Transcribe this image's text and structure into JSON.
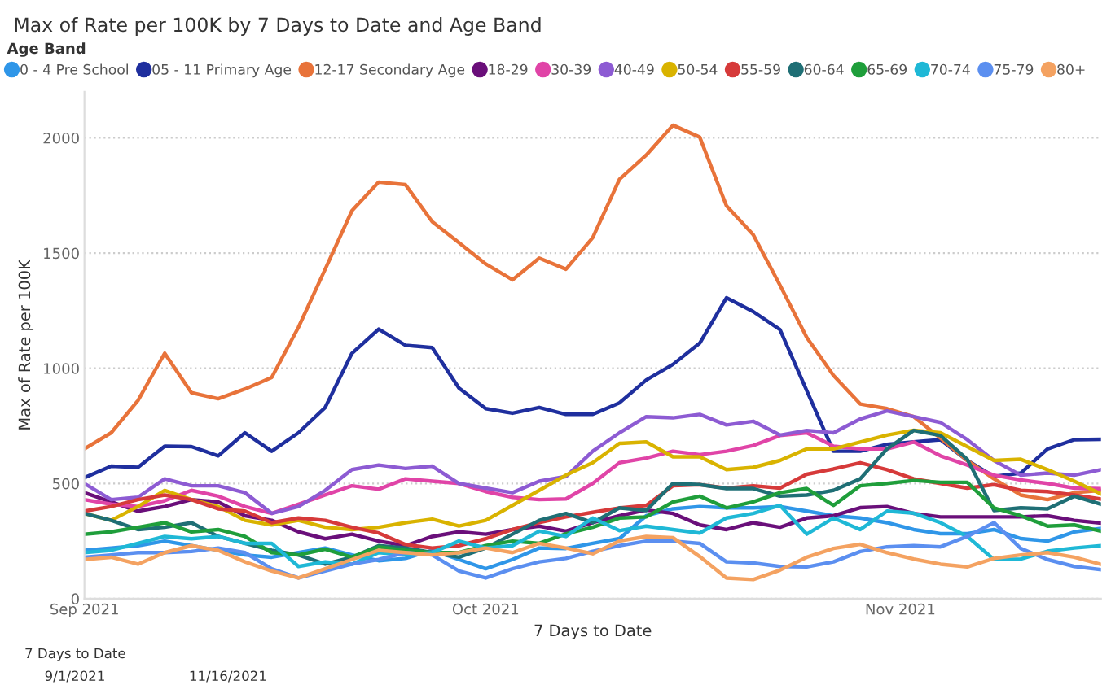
{
  "chart_data": {
    "type": "line",
    "title": "Max of Rate per 100K by 7 Days to Date and Age Band",
    "xlabel": "7 Days to Date",
    "ylabel": "Max of Rate per 100K",
    "legend_title": "Age Band",
    "legend": "top left",
    "grid": "y",
    "marker": "none",
    "line_style": "solid",
    "annotations": [
      "7 Days to Date",
      "9/1/2021",
      "11/16/2021"
    ],
    "xlim": [
      "2021-09-01",
      "2021-11-16"
    ],
    "xticks": [
      {
        "value": "2021-09-01",
        "label": "Sep 2021"
      },
      {
        "value": "2021-10-01",
        "label": "Oct 2021"
      },
      {
        "value": "2021-11-01",
        "label": "Nov 2021"
      }
    ],
    "ylim": [
      0,
      2200
    ],
    "yticks": [
      0,
      500,
      1000,
      1500,
      2000
    ],
    "x": [
      "2021-09-01",
      "2021-09-03",
      "2021-09-05",
      "2021-09-07",
      "2021-09-09",
      "2021-09-11",
      "2021-09-13",
      "2021-09-15",
      "2021-09-17",
      "2021-09-19",
      "2021-09-21",
      "2021-09-23",
      "2021-09-25",
      "2021-09-27",
      "2021-09-29",
      "2021-10-01",
      "2021-10-03",
      "2021-10-05",
      "2021-10-07",
      "2021-10-09",
      "2021-10-11",
      "2021-10-13",
      "2021-10-15",
      "2021-10-17",
      "2021-10-19",
      "2021-10-21",
      "2021-10-23",
      "2021-10-25",
      "2021-10-27",
      "2021-10-29",
      "2021-10-31",
      "2021-11-02",
      "2021-11-04",
      "2021-11-06",
      "2021-11-08",
      "2021-11-10",
      "2021-11-12",
      "2021-11-14",
      "2021-11-16"
    ],
    "series": [
      {
        "name": "0 - 4 Pre School",
        "color": "#2f96e8",
        "values": [
          210,
          220,
          230,
          250,
          230,
          210,
          190,
          180,
          200,
          220,
          190,
          165,
          175,
          210,
          170,
          130,
          170,
          220,
          218,
          240,
          261,
          360,
          390,
          400,
          394,
          394,
          400,
          380,
          360,
          350,
          330,
          300,
          282,
          282,
          300,
          261,
          250,
          290,
          305
        ]
      },
      {
        "name": "05 - 11 Primary Age",
        "color": "#1f2f9e",
        "values": [
          525,
          575,
          570,
          662,
          660,
          620,
          720,
          640,
          720,
          830,
          1065,
          1170,
          1100,
          1090,
          914,
          825,
          805,
          830,
          800,
          800,
          850,
          949,
          1017,
          1109,
          1306,
          1246,
          1168,
          903,
          640,
          640,
          670,
          680,
          690,
          600,
          530,
          545,
          650,
          690,
          692
        ]
      },
      {
        "name": "12-17 Secondary Age",
        "color": "#e8733a",
        "values": [
          650,
          720,
          860,
          1065,
          894,
          868,
          910,
          960,
          1178,
          1430,
          1684,
          1808,
          1797,
          1636,
          1545,
          1453,
          1384,
          1478,
          1430,
          1567,
          1820,
          1925,
          2055,
          2003,
          1705,
          1580,
          1361,
          1134,
          969,
          845,
          825,
          790,
          697,
          600,
          520,
          450,
          430,
          460,
          470
        ]
      },
      {
        "name": "18-29",
        "color": "#6a0f7a",
        "values": [
          460,
          420,
          380,
          400,
          430,
          420,
          360,
          340,
          290,
          260,
          280,
          250,
          230,
          270,
          290,
          280,
          300,
          315,
          293,
          330,
          360,
          385,
          370,
          320,
          300,
          330,
          310,
          350,
          360,
          395,
          400,
          370,
          355,
          355,
          355,
          355,
          360,
          340,
          328
        ]
      },
      {
        "name": "30-39",
        "color": "#e044a7",
        "values": [
          430,
          410,
          400,
          425,
          470,
          445,
          400,
          370,
          410,
          450,
          490,
          475,
          520,
          510,
          500,
          465,
          440,
          430,
          433,
          500,
          590,
          610,
          640,
          625,
          640,
          665,
          708,
          720,
          662,
          650,
          650,
          680,
          620,
          580,
          536,
          515,
          500,
          480,
          477
        ]
      },
      {
        "name": "40-49",
        "color": "#8d5bd3",
        "values": [
          500,
          430,
          440,
          520,
          490,
          490,
          460,
          370,
          400,
          470,
          560,
          580,
          565,
          575,
          500,
          480,
          460,
          510,
          530,
          640,
          720,
          790,
          785,
          800,
          754,
          770,
          710,
          730,
          720,
          780,
          815,
          790,
          765,
          690,
          600,
          536,
          545,
          536,
          560
        ]
      },
      {
        "name": "50-54",
        "color": "#d9b300",
        "values": [
          370,
          340,
          400,
          470,
          430,
          400,
          340,
          320,
          340,
          310,
          300,
          310,
          330,
          345,
          315,
          340,
          405,
          470,
          536,
          590,
          674,
          680,
          616,
          616,
          560,
          570,
          600,
          650,
          650,
          680,
          710,
          731,
          720,
          660,
          600,
          605,
          560,
          510,
          455
        ]
      },
      {
        "name": "55-59",
        "color": "#d63a3a",
        "values": [
          380,
          400,
          430,
          450,
          430,
          390,
          380,
          330,
          350,
          340,
          310,
          285,
          235,
          220,
          230,
          260,
          300,
          330,
          355,
          375,
          394,
          405,
          490,
          495,
          480,
          490,
          480,
          540,
          563,
          590,
          560,
          520,
          500,
          480,
          495,
          470,
          465,
          450,
          432
        ]
      },
      {
        "name": "60-64",
        "color": "#1f6f75",
        "values": [
          370,
          340,
          300,
          310,
          330,
          270,
          240,
          210,
          190,
          150,
          180,
          230,
          220,
          200,
          180,
          220,
          280,
          340,
          370,
          330,
          394,
          383,
          500,
          495,
          478,
          478,
          445,
          450,
          470,
          520,
          650,
          730,
          708,
          605,
          383,
          394,
          390,
          445,
          410
        ]
      },
      {
        "name": "65-69",
        "color": "#1f9e3b",
        "values": [
          280,
          290,
          310,
          330,
          290,
          300,
          270,
          200,
          190,
          215,
          180,
          225,
          210,
          200,
          200,
          230,
          250,
          240,
          282,
          310,
          350,
          355,
          420,
          445,
          394,
          420,
          460,
          478,
          405,
          490,
          500,
          513,
          505,
          505,
          394,
          360,
          315,
          320,
          293
        ]
      },
      {
        "name": "70-74",
        "color": "#1fb8d6",
        "values": [
          200,
          210,
          240,
          270,
          260,
          270,
          240,
          240,
          140,
          160,
          150,
          200,
          190,
          200,
          250,
          220,
          230,
          293,
          270,
          350,
          295,
          315,
          300,
          285,
          350,
          370,
          405,
          280,
          350,
          300,
          380,
          371,
          330,
          270,
          170,
          172,
          206,
          220,
          230
        ]
      },
      {
        "name": "75-79",
        "color": "#5b8ff0",
        "values": [
          180,
          190,
          200,
          200,
          205,
          220,
          200,
          130,
          90,
          120,
          150,
          170,
          200,
          190,
          120,
          90,
          130,
          160,
          175,
          206,
          230,
          250,
          250,
          240,
          160,
          155,
          140,
          138,
          160,
          205,
          225,
          230,
          225,
          270,
          330,
          218,
          170,
          140,
          126
        ]
      },
      {
        "name": "80+",
        "color": "#f4a261",
        "values": [
          170,
          180,
          150,
          200,
          230,
          210,
          160,
          120,
          90,
          130,
          170,
          210,
          200,
          190,
          200,
          220,
          200,
          240,
          220,
          195,
          250,
          270,
          265,
          183,
          90,
          83,
          124,
          180,
          218,
          236,
          200,
          172,
          150,
          138,
          175,
          190,
          200,
          180,
          149
        ]
      }
    ]
  }
}
